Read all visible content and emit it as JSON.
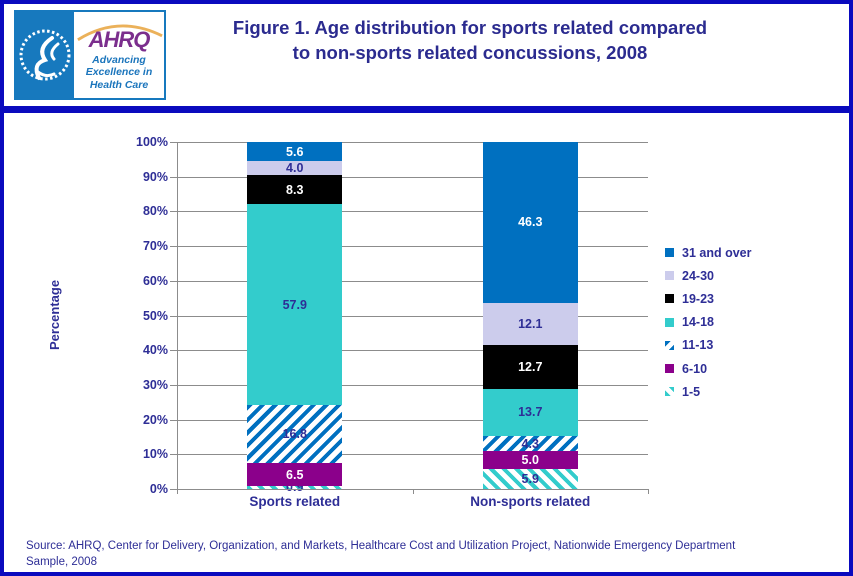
{
  "header": {
    "logo": {
      "org_acronym": "AHRQ",
      "tagline_line1": "Advancing",
      "tagline_line2": "Excellence in",
      "tagline_line3": "Health Care"
    },
    "title_line1": "Figure 1. Age distribution for sports related compared",
    "title_line2": "to non-sports related concussions, 2008"
  },
  "chart_data": {
    "type": "bar",
    "stacked": true,
    "title": "Figure 1. Age distribution for sports related compared to non-sports related concussions, 2008",
    "ylabel": "Percentage",
    "ylim": [
      0,
      100
    ],
    "y_tick_step": 10,
    "y_tick_suffix": "%",
    "grid": true,
    "legend_position": "right",
    "categories": [
      "Sports related",
      "Non-sports related"
    ],
    "series": [
      {
        "name": "1-5",
        "values": [
          0.9,
          5.9
        ],
        "fill": "hatch-teal",
        "label_color": "#2e2e96"
      },
      {
        "name": "6-10",
        "values": [
          6.5,
          5.0
        ],
        "fill": "solid-purple",
        "label_color": "#ffffff"
      },
      {
        "name": "11-13",
        "values": [
          16.8,
          4.3
        ],
        "fill": "hatch-blue",
        "label_color": "#2e2e96"
      },
      {
        "name": "14-18",
        "values": [
          57.9,
          13.7
        ],
        "fill": "solid-teal",
        "label_color": "#2e2e96"
      },
      {
        "name": "19-23",
        "values": [
          8.3,
          12.7
        ],
        "fill": "solid-black",
        "label_color": "#ffffff"
      },
      {
        "name": "24-30",
        "values": [
          4.0,
          12.1
        ],
        "fill": "solid-lavender",
        "label_color": "#2e2e96"
      },
      {
        "name": "31 and over",
        "values": [
          5.6,
          46.3
        ],
        "fill": "solid-blue",
        "label_color": "#ffffff"
      }
    ],
    "legend_order_top_to_bottom": [
      "31 and over",
      "24-30",
      "19-23",
      "14-18",
      "11-13",
      "6-10",
      "1-5"
    ]
  },
  "colors": {
    "frame_blue": "#0a0abe",
    "navy_text": "#2e2e96",
    "title_navy": "#2b2b8f",
    "bar_blue": "#0070c0",
    "bar_lavender": "#ccccec",
    "bar_black": "#000000",
    "bar_teal": "#33cccc",
    "bar_purple": "#8b008b",
    "hatch_blue_stripe": "#0070c0",
    "hatch_teal_stripe": "#33cccc",
    "gridline_gray": "#8c8c8c",
    "logo_blue": "#1779be",
    "logo_purple": "#7b2e8d",
    "logo_arc_orange": "#e8a33d"
  },
  "source": {
    "line1": "Source: AHRQ, Center for Delivery, Organization, and Markets, Healthcare Cost and Utilization Project, Nationwide Emergency Department",
    "line2": "Sample, 2008"
  }
}
